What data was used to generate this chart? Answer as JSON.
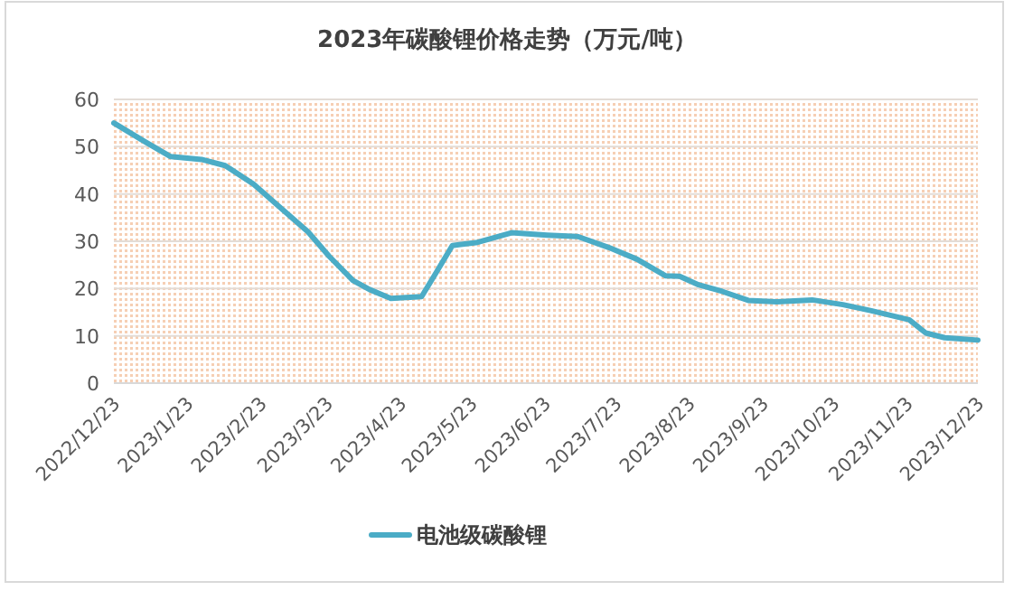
{
  "chart_data": {
    "type": "line",
    "title": "2023年碳酸锂价格走势（万元/吨）",
    "x": [
      "2022-12-23",
      "2023-01-05",
      "2023-01-16",
      "2023-01-29",
      "2023-02-08",
      "2023-02-20",
      "2023-03-02",
      "2023-03-15",
      "2023-03-24",
      "2023-04-03",
      "2023-04-10",
      "2023-04-19",
      "2023-05-02",
      "2023-05-07",
      "2023-05-15",
      "2023-05-25",
      "2023-06-09",
      "2023-06-24",
      "2023-07-07",
      "2023-07-20",
      "2023-08-01",
      "2023-08-13",
      "2023-08-19",
      "2023-08-27",
      "2023-09-06",
      "2023-09-17",
      "2023-09-29",
      "2023-10-14",
      "2023-10-27",
      "2023-11-08",
      "2023-11-24",
      "2023-12-01",
      "2023-12-09",
      "2023-12-23"
    ],
    "series": [
      {
        "name": "电池级碳酸锂",
        "color": "#4bacc6",
        "values": [
          55,
          51.1,
          47.9,
          47.3,
          46,
          42.1,
          37.7,
          32,
          26.8,
          21.7,
          19.8,
          17.9,
          18.3,
          22.4,
          29.1,
          29.7,
          31.8,
          31.3,
          31,
          28.7,
          26.2,
          22.7,
          22.6,
          20.8,
          19.4,
          17.5,
          17.2,
          17.6,
          16.6,
          15.3,
          13.4,
          10.6,
          9.6,
          9.1
        ]
      }
    ],
    "xlim": [
      "2022-12-23",
      "2023-12-23"
    ],
    "xticks": [
      {
        "value": "2022-12-23",
        "label": "2022/12/23"
      },
      {
        "value": "2023-01-23",
        "label": "2023/1/23"
      },
      {
        "value": "2023-02-23",
        "label": "2023/2/23"
      },
      {
        "value": "2023-03-23",
        "label": "2023/3/23"
      },
      {
        "value": "2023-04-23",
        "label": "2023/4/23"
      },
      {
        "value": "2023-05-23",
        "label": "2023/5/23"
      },
      {
        "value": "2023-06-23",
        "label": "2023/6/23"
      },
      {
        "value": "2023-07-23",
        "label": "2023/7/23"
      },
      {
        "value": "2023-08-23",
        "label": "2023/8/23"
      },
      {
        "value": "2023-09-23",
        "label": "2023/9/23"
      },
      {
        "value": "2023-10-23",
        "label": "2023/10/23"
      },
      {
        "value": "2023-11-23",
        "label": "2023/11/23"
      },
      {
        "value": "2023-12-23",
        "label": "2023/12/23"
      }
    ],
    "ylim": [
      0,
      60
    ],
    "yticks": [
      0,
      10,
      20,
      30,
      40,
      50,
      60
    ],
    "grid": "y",
    "legend": "bottom"
  }
}
